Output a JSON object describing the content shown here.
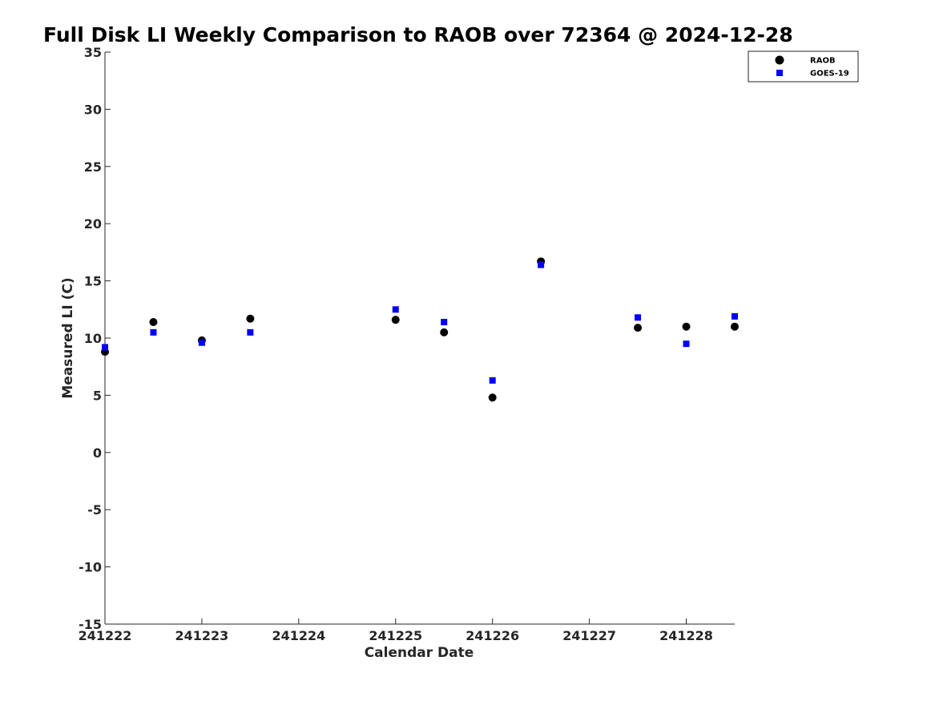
{
  "chart_data": {
    "type": "scatter",
    "title": "Full Disk LI Weekly Comparison to RAOB over 72364 @ 2024-12-28",
    "xlabel": "Calendar Date",
    "ylabel": "Measured LI (C)",
    "xlim": [
      0,
      6.5
    ],
    "ylim": [
      -15,
      35
    ],
    "x_ticks": [
      {
        "value": 0,
        "label": "241222"
      },
      {
        "value": 1,
        "label": "241223"
      },
      {
        "value": 2,
        "label": "241224"
      },
      {
        "value": 3,
        "label": "241225"
      },
      {
        "value": 4,
        "label": "241226"
      },
      {
        "value": 5,
        "label": "241227"
      },
      {
        "value": 6,
        "label": "241228"
      }
    ],
    "y_ticks": [
      {
        "value": 35,
        "label": "35"
      },
      {
        "value": 30,
        "label": "30"
      },
      {
        "value": 25,
        "label": "25"
      },
      {
        "value": 20,
        "label": "20"
      },
      {
        "value": 15,
        "label": "15"
      },
      {
        "value": 10,
        "label": "10"
      },
      {
        "value": 5,
        "label": "5"
      },
      {
        "value": 0,
        "label": "0"
      },
      {
        "value": -5,
        "label": "-5"
      },
      {
        "value": -10,
        "label": "-10"
      },
      {
        "value": -15,
        "label": "-15"
      }
    ],
    "grid": false,
    "legend_position": "top-right",
    "series": [
      {
        "name": "RAOB",
        "marker": "circle",
        "color": "#000000",
        "points": [
          {
            "x": 0,
            "y": 8.8
          },
          {
            "x": 0.5,
            "y": 11.4
          },
          {
            "x": 1,
            "y": 9.8
          },
          {
            "x": 1.5,
            "y": 11.7
          },
          {
            "x": 3,
            "y": 11.6
          },
          {
            "x": 3.5,
            "y": 10.5
          },
          {
            "x": 4,
            "y": 4.8
          },
          {
            "x": 4.5,
            "y": 16.7
          },
          {
            "x": 5.5,
            "y": 10.9
          },
          {
            "x": 6,
            "y": 11.0
          },
          {
            "x": 6.5,
            "y": 11.0
          }
        ]
      },
      {
        "name": "GOES-19",
        "marker": "square",
        "color": "#0000ff",
        "points": [
          {
            "x": 0,
            "y": 9.2
          },
          {
            "x": 0.5,
            "y": 10.5
          },
          {
            "x": 1,
            "y": 9.6
          },
          {
            "x": 1.5,
            "y": 10.5
          },
          {
            "x": 3,
            "y": 12.5
          },
          {
            "x": 3.5,
            "y": 11.4
          },
          {
            "x": 4,
            "y": 6.3
          },
          {
            "x": 4.5,
            "y": 16.4
          },
          {
            "x": 5.5,
            "y": 11.8
          },
          {
            "x": 6,
            "y": 9.5
          },
          {
            "x": 6.5,
            "y": 11.9
          }
        ]
      }
    ]
  }
}
